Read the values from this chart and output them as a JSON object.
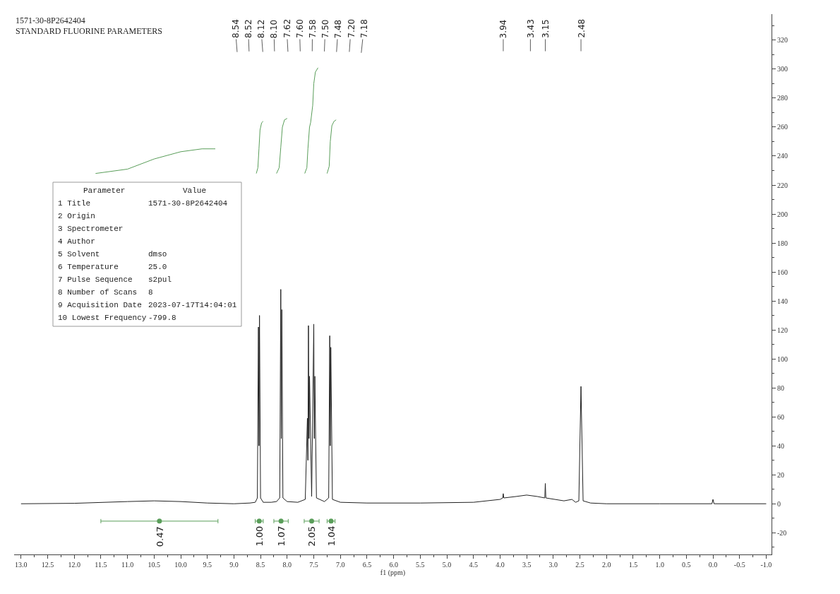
{
  "chart_data": {
    "type": "line",
    "title": "1571-30-8P2642404",
    "subtitle": "STANDARD FLUORINE PARAMETERS",
    "xlabel": "f1 (ppm)",
    "xlim": [
      13.13,
      -1.1
    ],
    "xticks": [
      {
        "value": 13,
        "label": "13.0"
      },
      {
        "value": 12.5,
        "label": "12.5"
      },
      {
        "value": 12,
        "label": "12.0"
      },
      {
        "value": 11.5,
        "label": "11.5"
      },
      {
        "value": 11,
        "label": "11.0"
      },
      {
        "value": 10.5,
        "label": "10.5"
      },
      {
        "value": 10,
        "label": "10.0"
      },
      {
        "value": 9.5,
        "label": "9.5"
      },
      {
        "value": 9,
        "label": "9.0"
      },
      {
        "value": 8.5,
        "label": "8.5"
      },
      {
        "value": 8,
        "label": "8.0"
      },
      {
        "value": 7.5,
        "label": "7.5"
      },
      {
        "value": 7,
        "label": "7.0"
      },
      {
        "value": 6.5,
        "label": "6.5"
      },
      {
        "value": 6,
        "label": "6.0"
      },
      {
        "value": 5.5,
        "label": "5.5"
      },
      {
        "value": 5,
        "label": "5.0"
      },
      {
        "value": 4.5,
        "label": "4.5"
      },
      {
        "value": 4,
        "label": "4.0"
      },
      {
        "value": 3.5,
        "label": "3.5"
      },
      {
        "value": 3,
        "label": "3.0"
      },
      {
        "value": 2.5,
        "label": "2.5"
      },
      {
        "value": 2,
        "label": "2.0"
      },
      {
        "value": 1.5,
        "label": "1.5"
      },
      {
        "value": 1,
        "label": "1.0"
      },
      {
        "value": 0.5,
        "label": "0.5"
      },
      {
        "value": 0,
        "label": "0.0"
      },
      {
        "value": -0.5,
        "label": "-0.5"
      },
      {
        "value": -1,
        "label": "-1.0"
      }
    ],
    "ylim": [
      -35,
      338
    ],
    "yticks": [
      -20,
      0,
      20,
      40,
      60,
      80,
      100,
      120,
      140,
      160,
      180,
      200,
      220,
      240,
      260,
      280,
      300,
      320
    ],
    "grid": false,
    "marker": "none",
    "line_style": "solid",
    "series": [
      {
        "color": "#222222",
        "x": [
          13.0,
          12.0,
          11.0,
          10.5,
          10.0,
          9.5,
          9.0,
          8.7,
          8.6,
          8.56,
          8.54,
          8.53,
          8.52,
          8.5,
          8.45,
          8.3,
          8.2,
          8.14,
          8.12,
          8.11,
          8.1,
          8.08,
          8.0,
          7.8,
          7.66,
          7.62,
          7.61,
          7.6,
          7.59,
          7.58,
          7.54,
          7.5,
          7.49,
          7.48,
          7.45,
          7.3,
          7.22,
          7.2,
          7.19,
          7.18,
          7.15,
          7.0,
          6.5,
          5.5,
          4.5,
          4.0,
          3.95,
          3.94,
          3.93,
          3.7,
          3.5,
          3.3,
          3.16,
          3.15,
          3.14,
          2.8,
          2.65,
          2.58,
          2.52,
          2.48,
          2.44,
          2.3,
          2.0,
          1.0,
          0.02,
          0.0,
          -0.02,
          -1.0
        ],
        "values": [
          0,
          0.3,
          1.5,
          2,
          1.5,
          0.5,
          0,
          0.5,
          1,
          4,
          122,
          40,
          130,
          4,
          1,
          1,
          1.5,
          4,
          148,
          45,
          134,
          4,
          1.5,
          1,
          3,
          59,
          30,
          123,
          45,
          88,
          5,
          124,
          45,
          88,
          4,
          1.5,
          4,
          116,
          40,
          108,
          3,
          1,
          0.5,
          0.5,
          1,
          3,
          4,
          7,
          4,
          5,
          6,
          5,
          4,
          14,
          4,
          2,
          3,
          1,
          2,
          81,
          2,
          0.5,
          0,
          0,
          0,
          3,
          0,
          0
        ]
      },
      {
        "color": "#5a9e5a",
        "x": [
          11.6,
          11.0,
          10.5,
          10.0,
          9.6,
          9.35
        ],
        "values": [
          228,
          231,
          238,
          243,
          245,
          245
        ]
      },
      {
        "color": "#5a9e5a",
        "x": [
          8.58,
          8.55,
          8.53,
          8.51,
          8.48,
          8.45
        ],
        "values": [
          228,
          232,
          245,
          258,
          263,
          264
        ]
      },
      {
        "color": "#5a9e5a",
        "x": [
          8.2,
          8.15,
          8.12,
          8.09,
          8.05,
          8.0
        ],
        "values": [
          228,
          232,
          246,
          260,
          265,
          266
        ]
      },
      {
        "color": "#5a9e5a",
        "x": [
          7.67,
          7.63,
          7.61,
          7.58,
          7.56,
          7.52,
          7.5,
          7.47,
          7.42
        ],
        "values": [
          228,
          232,
          245,
          260,
          263,
          275,
          290,
          298,
          301
        ]
      },
      {
        "color": "#5a9e5a",
        "x": [
          7.25,
          7.21,
          7.19,
          7.16,
          7.12,
          7.08
        ],
        "values": [
          228,
          233,
          250,
          261,
          264,
          265
        ]
      },
      {
        "type": "scatter",
        "marker": "circle",
        "color": "#5a9e5a",
        "x": [
          10.4,
          8.525,
          8.115,
          7.54,
          7.175
        ],
        "values": [
          -12,
          -12,
          -12,
          -12,
          -12
        ],
        "xerrors": [
          [
            9.3,
            11.5
          ],
          [
            8.45,
            8.6
          ],
          [
            7.98,
            8.25
          ],
          [
            7.4,
            7.68
          ],
          [
            7.1,
            7.25
          ]
        ]
      }
    ],
    "annotations": [
      {
        "text": "8.54",
        "x": 8.54,
        "y": 122
      },
      {
        "text": "8.52",
        "x": 8.52,
        "y": 130
      },
      {
        "text": "8.12",
        "x": 8.12,
        "y": 148
      },
      {
        "text": "8.10",
        "x": 8.1,
        "y": 134
      },
      {
        "text": "7.62",
        "x": 7.62,
        "y": 59
      },
      {
        "text": "7.60",
        "x": 7.6,
        "y": 123
      },
      {
        "text": "7.58",
        "x": 7.58,
        "y": 88
      },
      {
        "text": "7.50",
        "x": 7.5,
        "y": 124
      },
      {
        "text": "7.48",
        "x": 7.48,
        "y": 88
      },
      {
        "text": "7.20",
        "x": 7.2,
        "y": 116
      },
      {
        "text": "7.18",
        "x": 7.18,
        "y": 108
      },
      {
        "text": "3.94",
        "x": 3.94,
        "y": 7
      },
      {
        "text": "3.43",
        "x": 3.43,
        "y": 6
      },
      {
        "text": "3.15",
        "x": 3.15,
        "y": 14
      },
      {
        "text": "2.48",
        "x": 2.48,
        "y": 81
      },
      {
        "text": "0.47",
        "x": 10.4,
        "y": -12
      },
      {
        "text": "1.00",
        "x": 8.525,
        "y": -12
      },
      {
        "text": "1.07",
        "x": 8.115,
        "y": -12
      },
      {
        "text": "2.05",
        "x": 7.54,
        "y": -12
      },
      {
        "text": "1.04",
        "x": 7.175,
        "y": -12
      },
      "Parameter",
      "Value",
      "1 Title",
      "1571-30-8P2642404",
      "2 Origin",
      "3 Spectrometer",
      "4 Author",
      "5 Solvent",
      "dmso",
      "6 Temperature",
      "25.0",
      "7 Pulse Sequence",
      "s2pul",
      "8 Number of Scans",
      "8",
      "9 Acquisition Date",
      "2023-07-17T14:04:01",
      "10 Lowest Frequency",
      "-799.8"
    ]
  }
}
